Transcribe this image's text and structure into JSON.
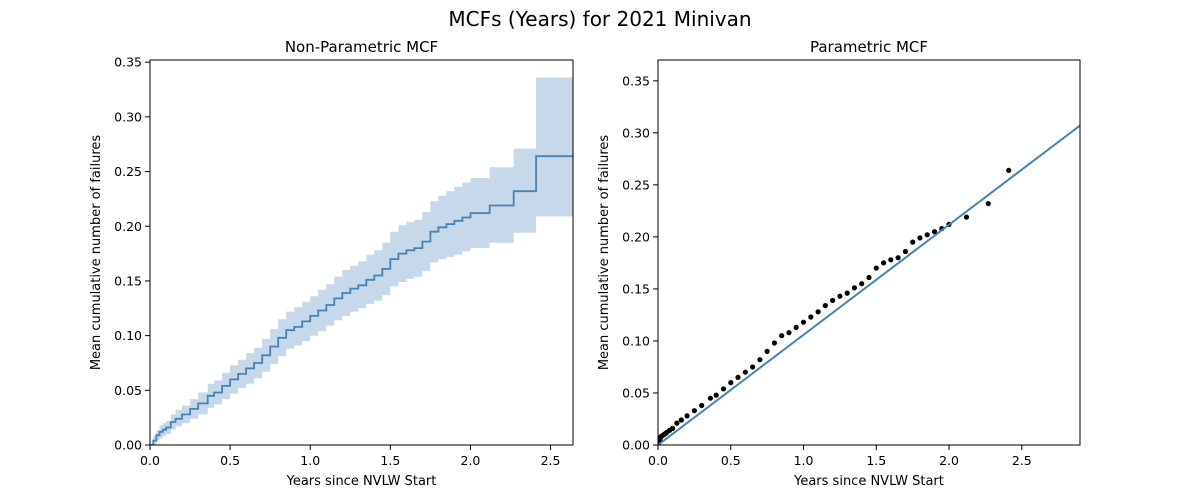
{
  "figure": {
    "title": "MCFs (Years) for 2021 Minivan"
  },
  "chart_data": [
    {
      "type": "line",
      "title": "Non-Parametric MCF",
      "xlabel": "Years since NVLW Start",
      "ylabel": "Mean cumulative number of failures",
      "xlim": [
        0.0,
        2.64
      ],
      "ylim": [
        0.0,
        0.352
      ],
      "xticks": [
        "0.0",
        "0.5",
        "1.0",
        "1.5",
        "2.0",
        "2.5"
      ],
      "yticks": [
        "0.00",
        "0.05",
        "0.10",
        "0.15",
        "0.20",
        "0.25",
        "0.30",
        "0.35"
      ],
      "grid": false,
      "colors": {
        "line": "#4682b4",
        "band": "#c6d8e9"
      },
      "series": [
        {
          "kind": "step",
          "x": [
            0.0,
            0.02,
            0.04,
            0.06,
            0.08,
            0.1,
            0.13,
            0.16,
            0.2,
            0.25,
            0.3,
            0.36,
            0.4,
            0.45,
            0.5,
            0.55,
            0.6,
            0.65,
            0.7,
            0.75,
            0.8,
            0.85,
            0.9,
            0.95,
            1.0,
            1.05,
            1.1,
            1.15,
            1.2,
            1.25,
            1.3,
            1.35,
            1.4,
            1.45,
            1.5,
            1.55,
            1.6,
            1.65,
            1.7,
            1.75,
            1.8,
            1.85,
            1.9,
            1.95,
            2.0,
            2.12,
            2.27,
            2.41,
            2.64
          ],
          "y": [
            0.0,
            0.004,
            0.009,
            0.012,
            0.014,
            0.016,
            0.021,
            0.024,
            0.028,
            0.033,
            0.038,
            0.045,
            0.048,
            0.054,
            0.06,
            0.065,
            0.07,
            0.075,
            0.082,
            0.09,
            0.098,
            0.105,
            0.108,
            0.113,
            0.118,
            0.123,
            0.128,
            0.134,
            0.139,
            0.143,
            0.146,
            0.151,
            0.155,
            0.161,
            0.17,
            0.175,
            0.178,
            0.18,
            0.186,
            0.195,
            0.199,
            0.202,
            0.205,
            0.208,
            0.212,
            0.219,
            0.232,
            0.264,
            0.264
          ],
          "lower": [
            0.0,
            0.0,
            0.004,
            0.006,
            0.008,
            0.01,
            0.014,
            0.017,
            0.02,
            0.024,
            0.028,
            0.034,
            0.037,
            0.042,
            0.047,
            0.052,
            0.056,
            0.061,
            0.067,
            0.074,
            0.081,
            0.088,
            0.091,
            0.095,
            0.1,
            0.104,
            0.109,
            0.114,
            0.118,
            0.122,
            0.125,
            0.129,
            0.132,
            0.137,
            0.145,
            0.149,
            0.152,
            0.154,
            0.159,
            0.167,
            0.17,
            0.172,
            0.174,
            0.177,
            0.18,
            0.185,
            0.194,
            0.209,
            0.209
          ],
          "upper": [
            0.0,
            0.008,
            0.014,
            0.018,
            0.02,
            0.022,
            0.028,
            0.032,
            0.036,
            0.042,
            0.048,
            0.056,
            0.059,
            0.066,
            0.073,
            0.078,
            0.084,
            0.089,
            0.097,
            0.106,
            0.115,
            0.122,
            0.126,
            0.131,
            0.136,
            0.142,
            0.147,
            0.154,
            0.16,
            0.164,
            0.168,
            0.174,
            0.178,
            0.185,
            0.195,
            0.201,
            0.204,
            0.206,
            0.213,
            0.223,
            0.228,
            0.232,
            0.236,
            0.24,
            0.244,
            0.254,
            0.271,
            0.336,
            0.336
          ]
        }
      ]
    },
    {
      "type": "scatter",
      "title": "Parametric MCF",
      "xlabel": "Years since NVLW Start",
      "ylabel": "Mean cumulative number of failures",
      "xlim": [
        0.0,
        2.9
      ],
      "ylim": [
        0.0,
        0.37
      ],
      "xticks": [
        "0.0",
        "0.5",
        "1.0",
        "1.5",
        "2.0",
        "2.5"
      ],
      "yticks": [
        "0.00",
        "0.05",
        "0.10",
        "0.15",
        "0.20",
        "0.25",
        "0.30",
        "0.35"
      ],
      "grid": false,
      "colors": {
        "points": "#000000",
        "fit": "#4682b4"
      },
      "series": [
        {
          "kind": "points",
          "x": [
            0.005,
            0.01,
            0.015,
            0.02,
            0.03,
            0.04,
            0.05,
            0.06,
            0.08,
            0.1,
            0.13,
            0.16,
            0.2,
            0.25,
            0.3,
            0.36,
            0.4,
            0.45,
            0.5,
            0.55,
            0.6,
            0.65,
            0.7,
            0.75,
            0.8,
            0.85,
            0.9,
            0.95,
            1.0,
            1.05,
            1.1,
            1.15,
            1.2,
            1.25,
            1.3,
            1.35,
            1.4,
            1.45,
            1.5,
            1.55,
            1.6,
            1.65,
            1.7,
            1.75,
            1.8,
            1.85,
            1.9,
            1.95,
            2.0,
            2.12,
            2.27,
            2.41
          ],
          "y": [
            0.002,
            0.004,
            0.006,
            0.008,
            0.009,
            0.01,
            0.011,
            0.012,
            0.014,
            0.016,
            0.021,
            0.024,
            0.028,
            0.033,
            0.038,
            0.045,
            0.048,
            0.054,
            0.06,
            0.065,
            0.07,
            0.075,
            0.082,
            0.09,
            0.098,
            0.105,
            0.108,
            0.113,
            0.118,
            0.123,
            0.128,
            0.134,
            0.139,
            0.143,
            0.146,
            0.151,
            0.155,
            0.161,
            0.17,
            0.175,
            0.178,
            0.18,
            0.186,
            0.195,
            0.199,
            0.202,
            0.205,
            0.208,
            0.212,
            0.219,
            0.232,
            0.264
          ]
        },
        {
          "kind": "line",
          "x": [
            0.0,
            2.9
          ],
          "y": [
            0.0,
            0.307
          ]
        }
      ]
    }
  ]
}
